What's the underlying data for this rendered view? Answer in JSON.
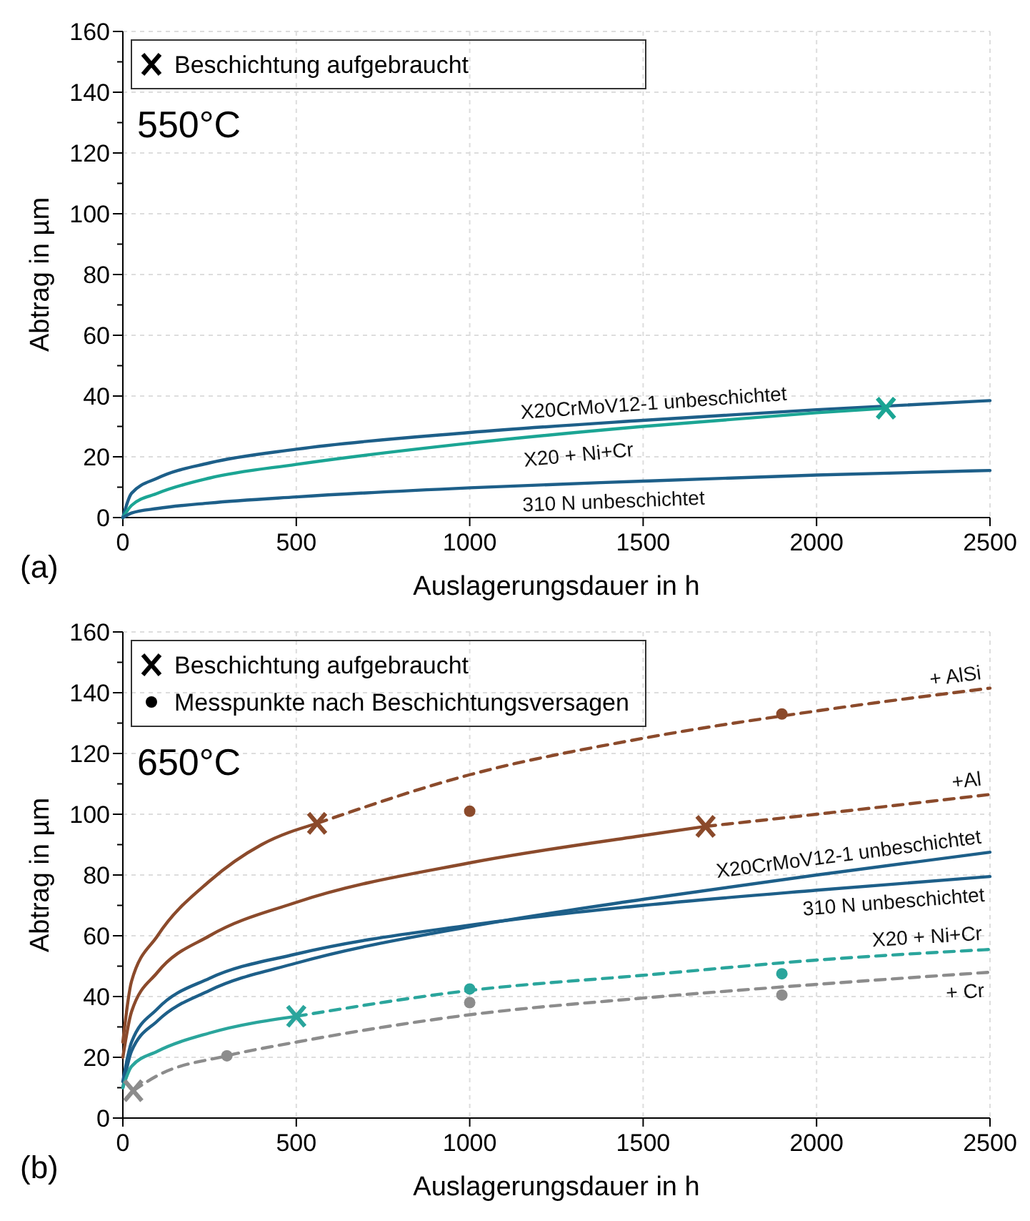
{
  "chart_data": [
    {
      "type": "line",
      "xlabel": "Auslagerungsdauer in h",
      "ylabel": "Abtrag in µm",
      "xlim": [
        0,
        2500
      ],
      "ylim": [
        0,
        160
      ],
      "xticks": [
        0,
        500,
        1000,
        1500,
        2000,
        2500
      ],
      "yticks": [
        0,
        {
          "value": 10,
          "label": null
        },
        20,
        {
          "value": 30,
          "label": null
        },
        40,
        {
          "value": 50,
          "label": null
        },
        60,
        {
          "value": 70,
          "label": null
        },
        80,
        {
          "value": 90,
          "label": null
        },
        100,
        {
          "value": 110,
          "label": null
        },
        120,
        {
          "value": 130,
          "label": null
        },
        140,
        {
          "value": 150,
          "label": null
        },
        160
      ],
      "grid": true,
      "annotations": [
        "550°C",
        "(a)",
        "Beschichtung aufgebraucht"
      ],
      "series": [
        {
          "name": "X20CrMoV12-1 unbeschichtet",
          "color": "#1d5f89",
          "line_style": "solid",
          "x": [
            0,
            25,
            100,
            250,
            500,
            1000,
            1500,
            2000,
            2500
          ],
          "values": [
            0,
            8,
            13,
            18,
            22.5,
            28,
            32,
            35.5,
            38.5
          ]
        },
        {
          "name": "X20 + Ni+Cr",
          "color": "#1ba594",
          "line_style": "solid",
          "x": [
            0,
            25,
            100,
            250,
            500,
            1000,
            1500,
            2000,
            2200
          ],
          "values": [
            0,
            4,
            8,
            13,
            17.5,
            24.5,
            30,
            34.5,
            36
          ]
        },
        {
          "name": "310 N unbeschichtet",
          "color": "#1d5f89",
          "line_style": "solid",
          "x": [
            0,
            25,
            100,
            250,
            500,
            1000,
            1500,
            2000,
            2500
          ],
          "values": [
            0,
            1.5,
            3,
            4.8,
            6.8,
            9.8,
            12,
            14,
            15.5
          ]
        },
        {
          "type": "scatter",
          "marker": "cross",
          "colors": [
            "#1ba594"
          ],
          "x": [
            2200
          ],
          "values": [
            36
          ]
        }
      ]
    },
    {
      "type": "line",
      "xlabel": "Auslagerungsdauer in h",
      "ylabel": "Abtrag in µm",
      "xlim": [
        0,
        2500
      ],
      "ylim": [
        0,
        160
      ],
      "xticks": [
        0,
        500,
        1000,
        1500,
        2000,
        2500
      ],
      "yticks": [
        0,
        {
          "value": 10,
          "label": null
        },
        20,
        {
          "value": 30,
          "label": null
        },
        40,
        {
          "value": 50,
          "label": null
        },
        60,
        {
          "value": 70,
          "label": null
        },
        80,
        {
          "value": 90,
          "label": null
        },
        100,
        {
          "value": 110,
          "label": null
        },
        120,
        {
          "value": 130,
          "label": null
        },
        140,
        {
          "value": 150,
          "label": null
        },
        160
      ],
      "grid": true,
      "annotations": [
        "650°C",
        "(b)",
        "Beschichtung aufgebraucht",
        "Messpunkte nach Beschichtungsversagen"
      ],
      "series": [
        {
          "color": "#8b4a2b",
          "line_style": "solid",
          "x": [
            0,
            25,
            100,
            250,
            400,
            560
          ],
          "values": [
            25,
            45,
            60,
            78,
            90,
            97
          ]
        },
        {
          "name": "+ AlSi",
          "color": "#8b4a2b",
          "line_style": "dashed",
          "x": [
            560,
            1000,
            1500,
            2000,
            2500
          ],
          "values": [
            97,
            113,
            125,
            134,
            141.5
          ]
        },
        {
          "color": "#8b4a2b",
          "line_style": "solid",
          "x": [
            0,
            25,
            100,
            250,
            500,
            1000,
            1500,
            1680
          ],
          "values": [
            20,
            35,
            48,
            60,
            71,
            84,
            93,
            96
          ]
        },
        {
          "name": "+Al",
          "color": "#8b4a2b",
          "line_style": "dashed",
          "x": [
            1680,
            2000,
            2500
          ],
          "values": [
            96,
            100,
            106.5
          ]
        },
        {
          "name": "X20CrMoV12-1 unbeschichtet",
          "color": "#1d5f89",
          "line_style": "solid",
          "x": [
            0,
            25,
            100,
            250,
            500,
            1000,
            1500,
            2000,
            2500
          ],
          "values": [
            10,
            22,
            32,
            42,
            51,
            63,
            72,
            80,
            87.5
          ]
        },
        {
          "name": "310 N unbeschichtet",
          "color": "#1d5f89",
          "line_style": "solid",
          "x": [
            0,
            25,
            100,
            250,
            500,
            1000,
            1500,
            2000,
            2500
          ],
          "values": [
            12,
            25,
            36,
            46,
            54,
            63.5,
            70,
            75,
            79.5
          ]
        },
        {
          "color": "#2aa59c",
          "line_style": "solid",
          "x": [
            0,
            25,
            100,
            250,
            500
          ],
          "values": [
            10,
            17,
            22,
            28,
            33.5
          ]
        },
        {
          "name": "X20 + Ni+Cr",
          "color": "#2aa59c",
          "line_style": "dashed",
          "x": [
            500,
            1000,
            1500,
            2000,
            2500
          ],
          "values": [
            33.5,
            42,
            47,
            52,
            55.5
          ]
        },
        {
          "name": "+ Cr",
          "color": "#8c8c8c",
          "line_style": "dashed",
          "x": [
            30,
            100,
            300,
            500,
            1000,
            1500,
            2000,
            2500
          ],
          "values": [
            9,
            14,
            20.5,
            25,
            34,
            39.5,
            44,
            48
          ]
        },
        {
          "type": "scatter",
          "marker": "cross",
          "colors": [
            "#8b4a2b",
            "#8b4a2b",
            "#2aa59c",
            "#8c8c8c"
          ],
          "x": [
            560,
            1680,
            500,
            30
          ],
          "values": [
            97,
            96,
            33.5,
            9
          ]
        },
        {
          "type": "scatter",
          "marker": "circle",
          "colors": [
            "#8b4a2b",
            "#8b4a2b",
            "#2aa59c",
            "#2aa59c",
            "#8c8c8c",
            "#8c8c8c",
            "#8c8c8c"
          ],
          "x": [
            1900,
            1000,
            1000,
            1900,
            300,
            1000,
            1900
          ],
          "values": [
            133,
            101,
            42.5,
            47.5,
            20.5,
            38,
            40.5
          ]
        }
      ]
    }
  ]
}
